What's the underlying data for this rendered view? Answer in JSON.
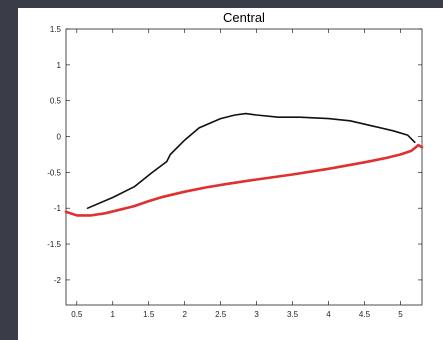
{
  "chart_data": {
    "type": "line",
    "title": "Central",
    "xlabel": "",
    "ylabel": "",
    "xlim": [
      0.35,
      5.3
    ],
    "ylim": [
      -2.35,
      1.5
    ],
    "x_ticks": [
      0.5,
      1,
      1.5,
      2,
      2.5,
      3,
      3.5,
      4,
      4.5,
      5
    ],
    "x_tick_labels": [
      "0.5",
      "1",
      "1.5",
      "2",
      "2.5",
      "3",
      "3.5",
      "4",
      "4.5",
      "5"
    ],
    "y_ticks": [
      1.5,
      1,
      0.5,
      0,
      -0.5,
      -1,
      -1.5,
      -2
    ],
    "y_tick_labels": [
      "1.5",
      "1",
      "0.5",
      "0",
      "-0.5",
      "-1",
      "-1.5",
      "-2"
    ],
    "grid": false,
    "series": [
      {
        "color": "#111111",
        "x": [
          0.65,
          1.0,
          1.3,
          1.55,
          1.75,
          1.8,
          2.0,
          2.2,
          2.5,
          2.7,
          2.85,
          3.0,
          3.3,
          3.6,
          4.0,
          4.3,
          4.6,
          4.9,
          5.1,
          5.2
        ],
        "y": [
          -1.0,
          -0.85,
          -0.7,
          -0.5,
          -0.35,
          -0.25,
          -0.05,
          0.12,
          0.25,
          0.3,
          0.32,
          0.3,
          0.27,
          0.27,
          0.25,
          0.22,
          0.15,
          0.08,
          0.02,
          -0.08
        ]
      },
      {
        "color": "#e03030",
        "x": [
          0.35,
          0.5,
          0.7,
          0.9,
          1.1,
          1.3,
          1.5,
          1.7,
          2.0,
          2.3,
          2.6,
          3.0,
          3.5,
          4.0,
          4.5,
          4.8,
          5.0,
          5.15,
          5.25,
          5.3
        ],
        "y": [
          -1.05,
          -1.1,
          -1.1,
          -1.07,
          -1.02,
          -0.97,
          -0.9,
          -0.84,
          -0.77,
          -0.71,
          -0.66,
          -0.6,
          -0.53,
          -0.45,
          -0.36,
          -0.3,
          -0.25,
          -0.2,
          -0.12,
          -0.15
        ]
      }
    ]
  }
}
